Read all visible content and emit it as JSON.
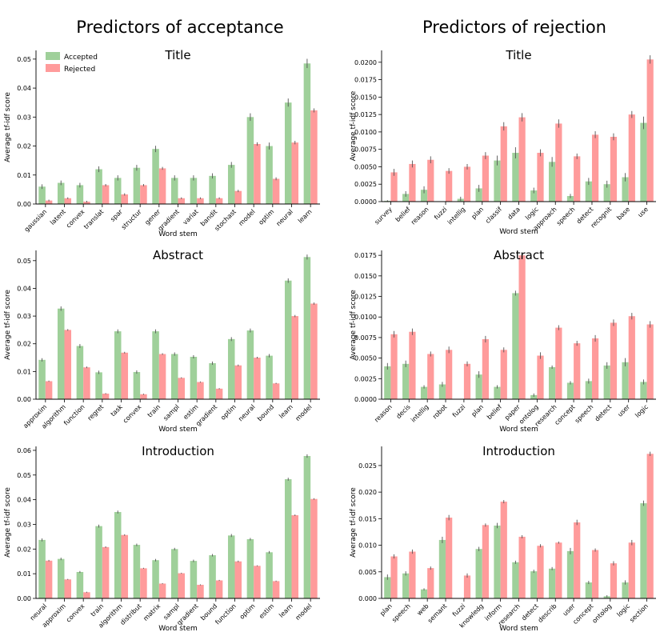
{
  "headings": [
    "Predictors of acceptance",
    "Predictors of rejection"
  ],
  "chart_data": [
    {
      "type": "bar",
      "title": "Title",
      "xlabel": "Word stem",
      "ylabel": "Average tf-idf score",
      "legend": "upper left",
      "categories": [
        "gaussian",
        "latent",
        "convex",
        "translat",
        "spar",
        "structur",
        "gener",
        "gradient",
        "variat",
        "bandit",
        "stochast",
        "model",
        "optim",
        "neural",
        "learn"
      ],
      "series": [
        {
          "name": "Accepted",
          "color": "#9fd09a",
          "values": [
            0.006,
            0.0073,
            0.0065,
            0.012,
            0.009,
            0.0125,
            0.019,
            0.009,
            0.009,
            0.0097,
            0.0135,
            0.03,
            0.02,
            0.035,
            0.0485
          ],
          "errors": [
            0.0008,
            0.0008,
            0.0008,
            0.001,
            0.0009,
            0.001,
            0.0011,
            0.0009,
            0.0009,
            0.0009,
            0.001,
            0.0013,
            0.0012,
            0.0014,
            0.0016
          ]
        },
        {
          "name": "Rejected",
          "color": "#ff9b9b",
          "values": [
            0.0012,
            0.002,
            0.0008,
            0.0065,
            0.0033,
            0.0065,
            0.0123,
            0.002,
            0.002,
            0.002,
            0.0045,
            0.0207,
            0.0087,
            0.0212,
            0.0323
          ],
          "errors": [
            0.0003,
            0.0003,
            0.0003,
            0.0004,
            0.0004,
            0.0004,
            0.0005,
            0.0003,
            0.0003,
            0.0003,
            0.0004,
            0.0006,
            0.0005,
            0.0006,
            0.0007
          ]
        }
      ],
      "ylim": [
        0,
        0.053
      ],
      "yticks": [
        {
          "value": 0,
          "label": "0.00"
        },
        0.01,
        0.02,
        0.03,
        0.04,
        0.05
      ]
    },
    {
      "type": "bar",
      "title": "Title",
      "xlabel": "Word stem",
      "ylabel": "Average tf-idf score",
      "categories": [
        "survey",
        "belief",
        "reason",
        "fuzzi",
        "intellig",
        "plan",
        "classif",
        "data",
        "logic",
        "approach",
        "speech",
        "detect",
        "recognit",
        "base",
        "use"
      ],
      "series": [
        {
          "name": "Accepted",
          "color": "#9fd09a",
          "values": [
            0.0001,
            0.0011,
            0.0017,
            0,
            0.0004,
            0.0019,
            0.0059,
            0.007,
            0.0016,
            0.0057,
            0.0008,
            0.0029,
            0.0025,
            0.0035,
            0.0113
          ],
          "errors": [
            0.0001,
            0.0004,
            0.0005,
            0,
            0.0003,
            0.0005,
            0.0007,
            0.0008,
            0.0004,
            0.0007,
            0.0003,
            0.0005,
            0.0005,
            0.0006,
            0.0009
          ]
        },
        {
          "name": "Rejected",
          "color": "#ff9b9b",
          "values": [
            0.0042,
            0.0054,
            0.006,
            0.0044,
            0.005,
            0.0066,
            0.0108,
            0.0121,
            0.007,
            0.0112,
            0.0065,
            0.0096,
            0.0093,
            0.0125,
            0.0204
          ],
          "errors": [
            0.0005,
            0.0005,
            0.0005,
            0.0004,
            0.0004,
            0.0005,
            0.0006,
            0.0006,
            0.0005,
            0.0006,
            0.0004,
            0.0005,
            0.0005,
            0.0005,
            0.0006
          ]
        }
      ],
      "ylim": [
        0,
        0.0217
      ],
      "yticks": [
        {
          "value": 0,
          "label": "0.0000"
        },
        0.0025,
        {
          "value": 0.005,
          "label": "0.0050"
        },
        0.0075,
        {
          "value": 0.01,
          "label": "0.0100"
        },
        0.0125,
        {
          "value": 0.015,
          "label": "0.0150"
        },
        0.0175,
        {
          "value": 0.02,
          "label": "0.0200"
        }
      ]
    },
    {
      "type": "bar",
      "title": "Abstract",
      "xlabel": "Word stem",
      "ylabel": "Average tf-idf score",
      "categories": [
        "approxim",
        "algorithm",
        "function",
        "regret",
        "task",
        "convex",
        "train",
        "sampl",
        "estim",
        "gradient",
        "optim",
        "neural",
        "bound",
        "learn",
        "model"
      ],
      "series": [
        {
          "name": "Accepted",
          "color": "#9fd09a",
          "values": [
            0.0142,
            0.0327,
            0.0192,
            0.0097,
            0.0245,
            0.0098,
            0.0245,
            0.0163,
            0.0153,
            0.013,
            0.0217,
            0.0248,
            0.0157,
            0.0428,
            0.0513
          ],
          "errors": [
            0.0006,
            0.0008,
            0.0007,
            0.0006,
            0.0007,
            0.0006,
            0.0007,
            0.0006,
            0.0006,
            0.0006,
            0.0007,
            0.0007,
            0.0006,
            0.0008,
            0.0009
          ]
        },
        {
          "name": "Rejected",
          "color": "#ff9b9b",
          "values": [
            0.0065,
            0.025,
            0.0115,
            0.002,
            0.0168,
            0.0018,
            0.0163,
            0.0077,
            0.0062,
            0.0038,
            0.0122,
            0.015,
            0.0057,
            0.03,
            0.0345
          ],
          "errors": [
            0.0002,
            0.0003,
            0.0003,
            0.0002,
            0.0003,
            0.0002,
            0.0003,
            0.0002,
            0.0002,
            0.0002,
            0.0003,
            0.0003,
            0.0002,
            0.0004,
            0.0004
          ]
        }
      ],
      "ylim": [
        0,
        0.0537
      ],
      "yticks": [
        {
          "value": 0,
          "label": "0.00"
        },
        0.01,
        0.02,
        0.03,
        0.04,
        0.05
      ]
    },
    {
      "type": "bar",
      "title": "Abstract",
      "xlabel": "Word stem",
      "ylabel": "Average tf-idf score",
      "categories": [
        "reason",
        "decis",
        "intellig",
        "robot",
        "fuzzi",
        "plan",
        "belief",
        "paper",
        "ontolog",
        "research",
        "concept",
        "speech",
        "detect",
        "user",
        "logic"
      ],
      "series": [
        {
          "name": "Accepted",
          "color": "#9fd09a",
          "values": [
            0.004,
            0.0043,
            0.0015,
            0.0018,
            0,
            0.003,
            0.0015,
            0.0129,
            0.0005,
            0.0039,
            0.002,
            0.0022,
            0.0041,
            0.0045,
            0.0021
          ],
          "errors": [
            0.0004,
            0.0004,
            0.0002,
            0.0003,
            0,
            0.0004,
            0.0002,
            0.0003,
            0.0002,
            0.0002,
            0.0002,
            0.0003,
            0.0004,
            0.0005,
            0.0003
          ]
        },
        {
          "name": "Rejected",
          "color": "#ff9b9b",
          "values": [
            0.0079,
            0.0082,
            0.0055,
            0.006,
            0.0043,
            0.0073,
            0.006,
            0.0175,
            0.0053,
            0.0087,
            0.0068,
            0.0074,
            0.0093,
            0.0101,
            0.0091
          ],
          "errors": [
            0.0004,
            0.0004,
            0.0003,
            0.0004,
            0.0003,
            0.0004,
            0.0003,
            0.0003,
            0.0004,
            0.0003,
            0.0003,
            0.0004,
            0.0004,
            0.0004,
            0.0004
          ]
        }
      ],
      "ylim": [
        0,
        0.0181
      ],
      "yticks": [
        {
          "value": 0,
          "label": "0.0000"
        },
        0.0025,
        {
          "value": 0.005,
          "label": "0.0050"
        },
        0.0075,
        {
          "value": 0.01,
          "label": "0.0100"
        },
        0.0125,
        {
          "value": 0.015,
          "label": "0.0150"
        },
        0.0175
      ]
    },
    {
      "type": "bar",
      "title": "Introduction",
      "xlabel": "Word stem",
      "ylabel": "Average tf-idf score",
      "categories": [
        "neural",
        "approxim",
        "convex",
        "train",
        "algorithm",
        "distribut",
        "matrix",
        "sampl",
        "gradient",
        "bound",
        "function",
        "optim",
        "estim",
        "learn",
        "model"
      ],
      "series": [
        {
          "name": "Accepted",
          "color": "#9fd09a",
          "values": [
            0.0237,
            0.016,
            0.0107,
            0.0293,
            0.035,
            0.0217,
            0.0155,
            0.02,
            0.0152,
            0.0175,
            0.0255,
            0.024,
            0.0187,
            0.0483,
            0.0577
          ],
          "errors": [
            0.0006,
            0.0005,
            0.0004,
            0.0006,
            0.0006,
            0.0005,
            0.0005,
            0.0005,
            0.0005,
            0.0005,
            0.0006,
            0.0005,
            0.0005,
            0.0006,
            0.0007
          ]
        },
        {
          "name": "Rejected",
          "color": "#ff9b9b",
          "values": [
            0.0153,
            0.0077,
            0.0025,
            0.0208,
            0.0257,
            0.0122,
            0.006,
            0.0102,
            0.0055,
            0.0073,
            0.015,
            0.0132,
            0.007,
            0.0337,
            0.0403
          ],
          "errors": [
            0.0003,
            0.0002,
            0.0002,
            0.0003,
            0.0003,
            0.0002,
            0.0002,
            0.0002,
            0.0002,
            0.0002,
            0.0003,
            0.0002,
            0.0002,
            0.0003,
            0.0003
          ]
        }
      ],
      "ylim": [
        0,
        0.0616
      ],
      "yticks": [
        {
          "value": 0,
          "label": "0.00"
        },
        0.01,
        0.02,
        0.03,
        0.04,
        0.05,
        0.06
      ]
    },
    {
      "type": "bar",
      "title": "Introduction",
      "xlabel": "Word stem",
      "ylabel": "Average tf-idf score",
      "categories": [
        "plan",
        "speech",
        "web",
        "semant",
        "fuzzi",
        "knowledg",
        "inform",
        "research",
        "detect",
        "describ",
        "user",
        "concept",
        "ontolog",
        "logic",
        "section"
      ],
      "series": [
        {
          "name": "Accepted",
          "color": "#9fd09a",
          "values": [
            0.004,
            0.0047,
            0.0017,
            0.011,
            0,
            0.0093,
            0.0137,
            0.0068,
            0.0051,
            0.0056,
            0.0089,
            0.003,
            0.0004,
            0.003,
            0.0179
          ],
          "errors": [
            0.0005,
            0.0004,
            0.0002,
            0.0006,
            0,
            0.0004,
            0.0005,
            0.0003,
            0.0003,
            0.0003,
            0.0006,
            0.0003,
            0.0002,
            0.0004,
            0.0005
          ]
        },
        {
          "name": "Rejected",
          "color": "#ff9b9b",
          "values": [
            0.0079,
            0.0088,
            0.0057,
            0.0152,
            0.0043,
            0.0138,
            0.0182,
            0.0116,
            0.0099,
            0.0105,
            0.0143,
            0.0091,
            0.0066,
            0.0105,
            0.0272
          ],
          "errors": [
            0.0004,
            0.0004,
            0.0003,
            0.0005,
            0.0004,
            0.0003,
            0.0003,
            0.0003,
            0.0003,
            0.0002,
            0.0005,
            0.0003,
            0.0004,
            0.0005,
            0.0004
          ]
        }
      ],
      "ylim": [
        0,
        0.0286
      ],
      "yticks": [
        {
          "value": 0,
          "label": "0.000"
        },
        0.005,
        {
          "value": 0.01,
          "label": "0.010"
        },
        0.015,
        {
          "value": 0.02,
          "label": "0.020"
        },
        0.025
      ]
    }
  ]
}
